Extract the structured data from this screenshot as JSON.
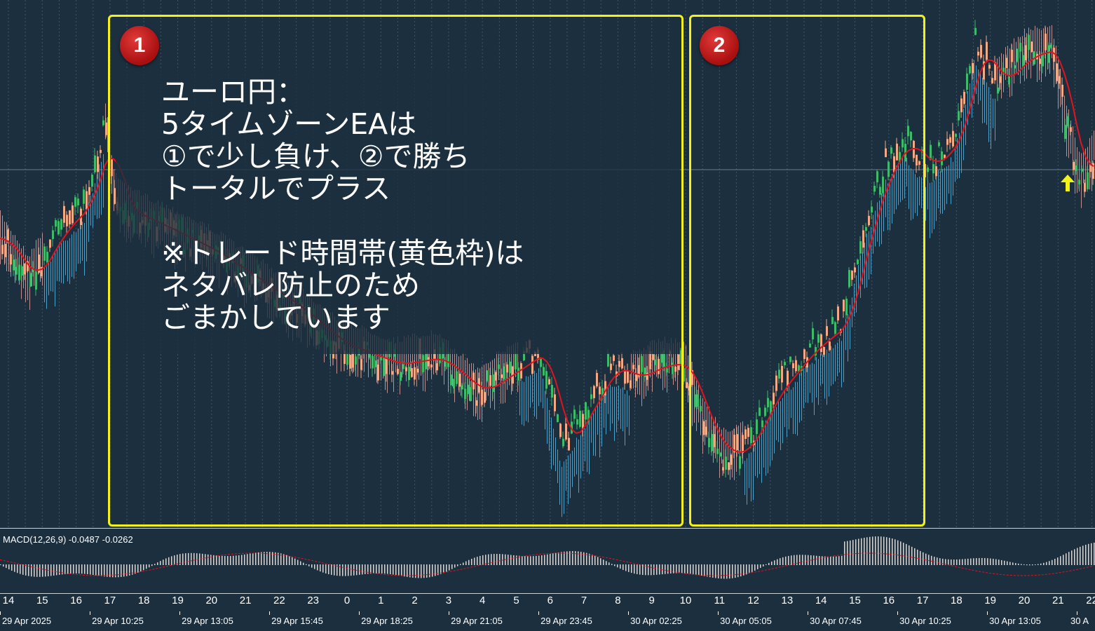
{
  "overlay": {
    "lines": [
      "ユーロ円：",
      "5タイムゾーンEAは",
      "①で少し負け、②で勝ち",
      "トータルでプラス",
      "",
      "※トレード時間帯(黄色枠)は",
      "ネタバレ防止のため",
      "ごまかしています"
    ]
  },
  "boxes": [
    {
      "label": "1"
    },
    {
      "label": "2"
    }
  ],
  "macd": {
    "label": "MACD(12,26,9) -0.0487 -0.0262"
  },
  "axis": {
    "hours": [
      "14",
      "15",
      "16",
      "17",
      "18",
      "19",
      "20",
      "21",
      "22",
      "23",
      "0",
      "1",
      "2",
      "3",
      "4",
      "5",
      "6",
      "7",
      "8",
      "9",
      "10",
      "11",
      "12",
      "13",
      "14",
      "15",
      "16",
      "17",
      "18",
      "19",
      "20",
      "21",
      "22"
    ],
    "dates": [
      "29 Apr 2025",
      "29 Apr 10:25",
      "29 Apr 13:05",
      "29 Apr 15:45",
      "29 Apr 18:25",
      "29 Apr 21:05",
      "29 Apr 23:45",
      "30 Apr 02:25",
      "30 Apr 05:05",
      "30 Apr 07:45",
      "30 Apr 10:25",
      "30 Apr 13:05",
      "30 A"
    ]
  },
  "colors": {
    "background": "#1c2f3f",
    "bull_candle": "#3dbb6a",
    "bear_candle": "#f2a987",
    "cloud_up": "#4fb6e6",
    "cloud_down": "#d9a0a0",
    "ma_line": "#e0141e",
    "box_border": "#f4f01a",
    "badge": "#c41a1a",
    "arrow": "#f4f01a"
  }
}
